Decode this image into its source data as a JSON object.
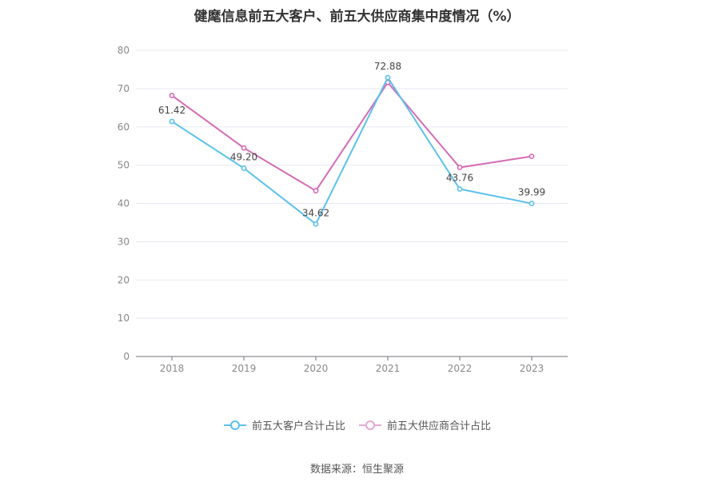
{
  "chart_data": {
    "type": "line",
    "title": "健麾信息前五大客户、前五大供应商集中度情况（%）",
    "categories": [
      "2018",
      "2019",
      "2020",
      "2021",
      "2022",
      "2023"
    ],
    "ylim": [
      0,
      80
    ],
    "yticks": [
      0,
      10,
      20,
      30,
      40,
      50,
      60,
      70,
      80
    ],
    "grid": true,
    "legend_position": "bottom",
    "series": [
      {
        "name": "前五大客户合计占比",
        "color": "#5bc0eb",
        "values": [
          61.42,
          49.2,
          34.62,
          72.88,
          43.76,
          39.99
        ],
        "labels": [
          "61.42",
          "49.20",
          "34.62",
          "72.88",
          "43.76",
          "39.99"
        ]
      },
      {
        "name": "前五大供应商合计占比",
        "color": "#d36bb3",
        "values": [
          68.2,
          54.5,
          43.3,
          71.6,
          49.4,
          52.3
        ]
      }
    ]
  },
  "source": "数据来源：恒生聚源"
}
